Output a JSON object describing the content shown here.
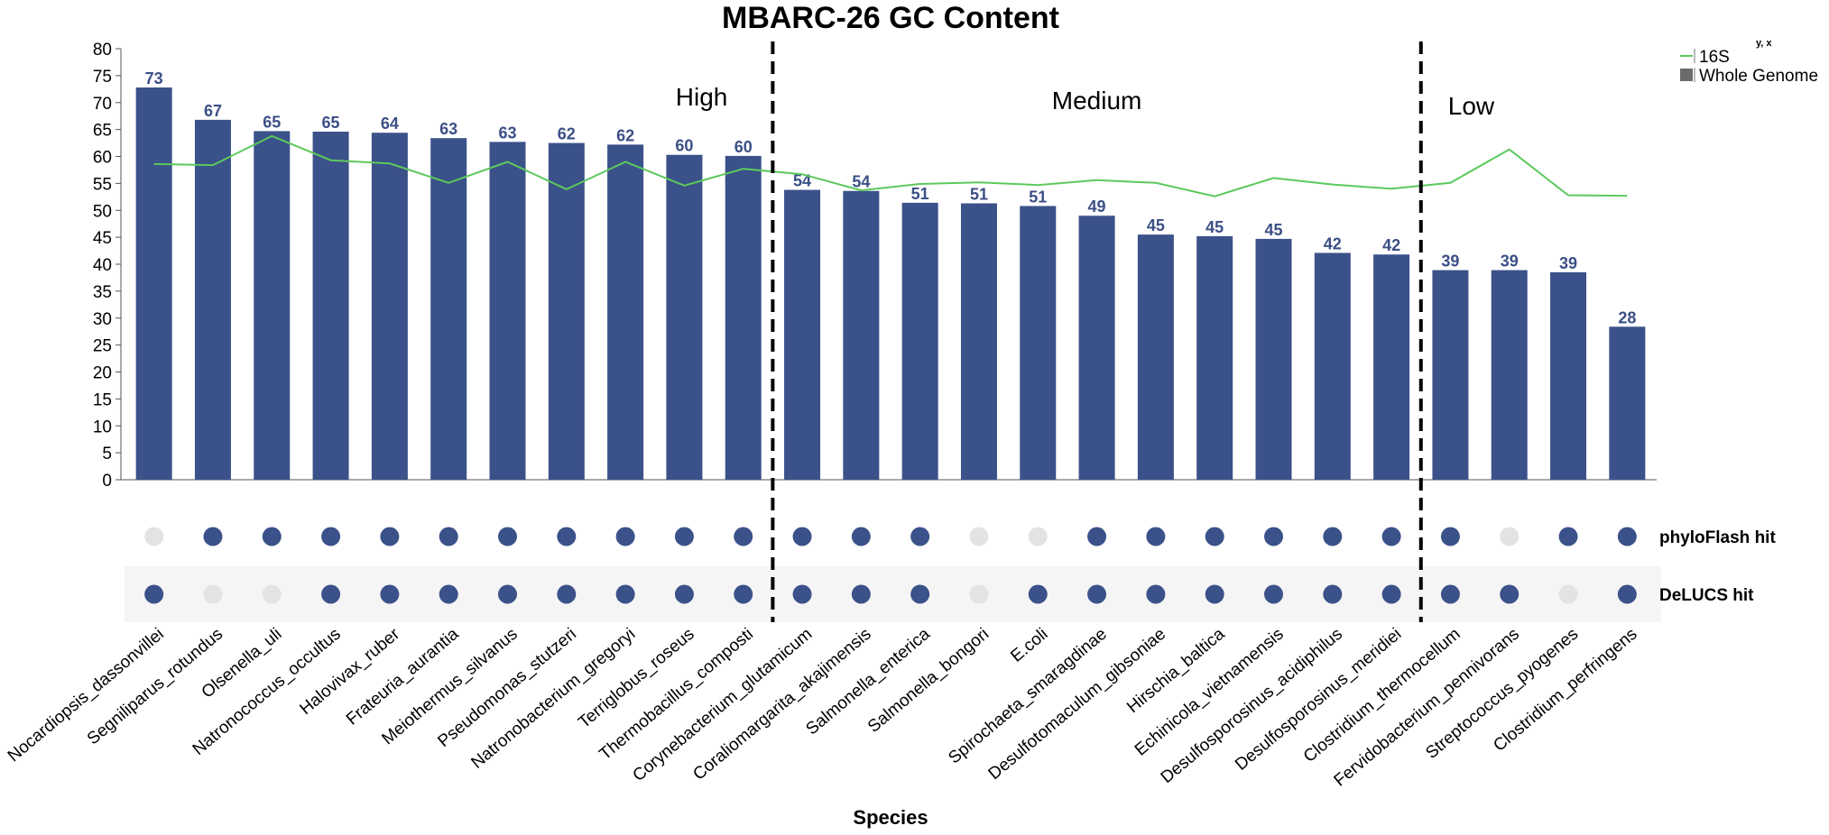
{
  "chart_data": {
    "type": "bar",
    "title": "MBARC-26 GC Content",
    "xlabel": "Species",
    "ylabel": "",
    "ylim": [
      0,
      80
    ],
    "yticks": [
      0,
      5,
      10,
      15,
      20,
      25,
      30,
      35,
      40,
      45,
      50,
      55,
      60,
      65,
      70,
      75,
      80
    ],
    "categories": [
      "Nocardiopsis_dassonvillei",
      "Segniliparus_rotundus",
      "Olsenella_uli",
      "Natronococcus_occultus",
      "Halovivax_ruber",
      "Frateuria_aurantia",
      "Meiothermus_silvanus",
      "Pseudomonas_stutzeri",
      "Natronobacterium_gregoryi",
      "Terriglobus_roseus",
      "Thermobacillus_composti",
      "Corynebacterium_glutamicum",
      "Coraliomargarita_akajimensis",
      "Salmonella_enterica",
      "Salmonella_bongori",
      "E.coli",
      "Spirochaeta_smaragdinae",
      "Desulfotomaculum_gibsoniae",
      "Hirschia_baltica",
      "Echinicola_vietnamensis",
      "Desulfosporosinus_acidiphilus",
      "Desulfosporosinus_meridiei",
      "Clostridium_thermocellum",
      "Fervidobacterium_pennivorans",
      "Streptococcus_pyogenes",
      "Clostridium_perfringens"
    ],
    "series": [
      {
        "name": "Whole Genome",
        "kind": "bar",
        "color": "#3b5189",
        "values": [
          72.8,
          66.8,
          64.7,
          64.6,
          64.4,
          63.4,
          62.7,
          62.5,
          62.2,
          60.3,
          60.1,
          53.8,
          53.6,
          51.4,
          51.3,
          50.8,
          49.0,
          45.5,
          45.2,
          44.7,
          42.1,
          41.8,
          38.9,
          38.9,
          38.5,
          28.4
        ],
        "labels": [
          "73",
          "67",
          "65",
          "65",
          "64",
          "63",
          "63",
          "62",
          "62",
          "60",
          "60",
          "54",
          "54",
          "51",
          "51",
          "51",
          "49",
          "45",
          "45",
          "45",
          "42",
          "42",
          "39",
          "39",
          "39",
          "28"
        ]
      },
      {
        "name": "16S",
        "kind": "line",
        "color": "#5cc95c",
        "values": [
          58.6,
          58.4,
          63.8,
          59.3,
          58.7,
          55.1,
          59.0,
          53.9,
          59.0,
          54.6,
          57.7,
          56.7,
          53.7,
          54.9,
          55.2,
          54.7,
          55.6,
          55.1,
          52.6,
          56.0,
          54.8,
          54.0,
          55.1,
          61.3,
          52.8,
          52.7
        ]
      }
    ],
    "regions": [
      {
        "label": "High",
        "start": 0,
        "end": 10
      },
      {
        "label": "Medium",
        "start": 11,
        "end": 21
      },
      {
        "label": "Low",
        "start": 22,
        "end": 25
      }
    ],
    "hit_rows": [
      {
        "label": "phyloFlash hit",
        "hits": [
          0,
          1,
          1,
          1,
          1,
          1,
          1,
          1,
          1,
          1,
          1,
          1,
          1,
          1,
          0,
          0,
          1,
          1,
          1,
          1,
          1,
          1,
          1,
          0,
          1,
          1
        ]
      },
      {
        "label": "DeLUCS hit",
        "hits": [
          1,
          0,
          0,
          1,
          1,
          1,
          1,
          1,
          1,
          1,
          1,
          1,
          1,
          1,
          0,
          1,
          1,
          1,
          1,
          1,
          1,
          1,
          1,
          1,
          0,
          1
        ]
      }
    ],
    "hit_colors": {
      "hit": "#3b5189",
      "miss": "#e3e3e3",
      "row_band": "#f5f5f5"
    },
    "legend": {
      "position": "top-right",
      "superscript": "y, x",
      "items": [
        {
          "name": "16S",
          "symbol": "line"
        },
        {
          "name": "Whole Genome",
          "symbol": "square"
        }
      ]
    },
    "grid": false
  }
}
